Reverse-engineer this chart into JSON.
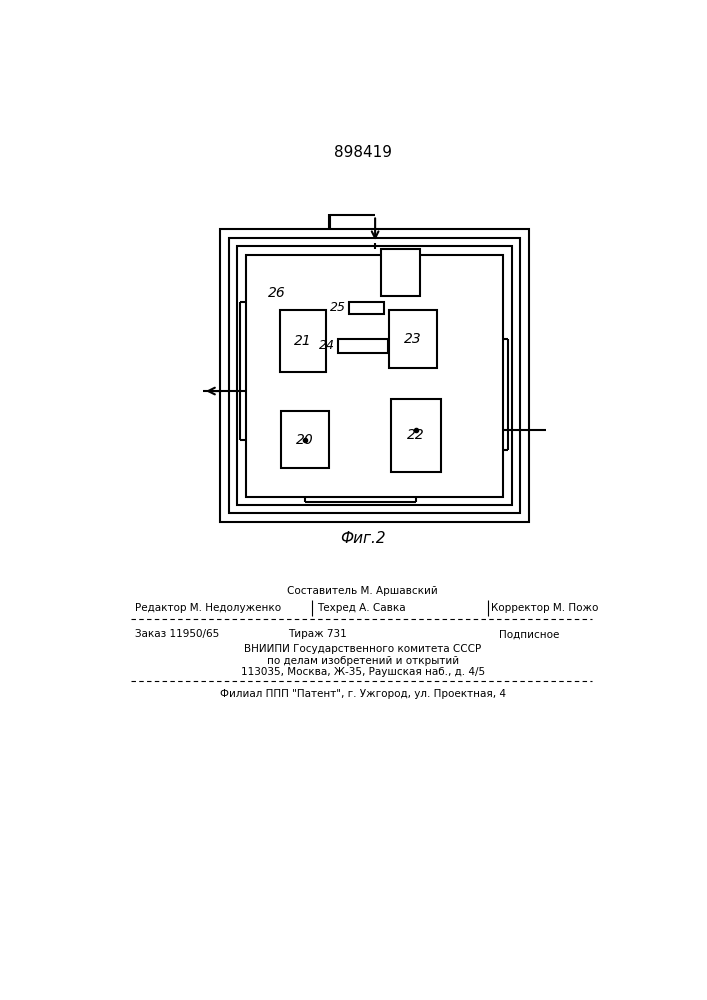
{
  "title": "898419",
  "background_color": "#ffffff",
  "line_color": "#000000",
  "lw": 1.5,
  "page_width": 7.07,
  "page_height": 10.0,
  "footer": {
    "sestavitel": "Составитель М. Аршавский",
    "redaktor": "Редактор М. Недолуженко",
    "tehred": "Техред А. Савка",
    "korrektor": "Корректор М. Пожо",
    "zakaz": "Заказ 11950/65",
    "tirazh": "Тираж 731",
    "podpisnoe": "Подписное",
    "vniiipi_line1": "ВНИИПИ Государственного комитета СССР",
    "vniiipi_line2": "по делам изобретений и открытий",
    "vniiipi_line3": "113035, Москва, Ж-35, Раушская наб., д. 4/5",
    "filial": "Филиал ППП \"Патент\", г. Ужгород, ул. Проектная, 4"
  }
}
